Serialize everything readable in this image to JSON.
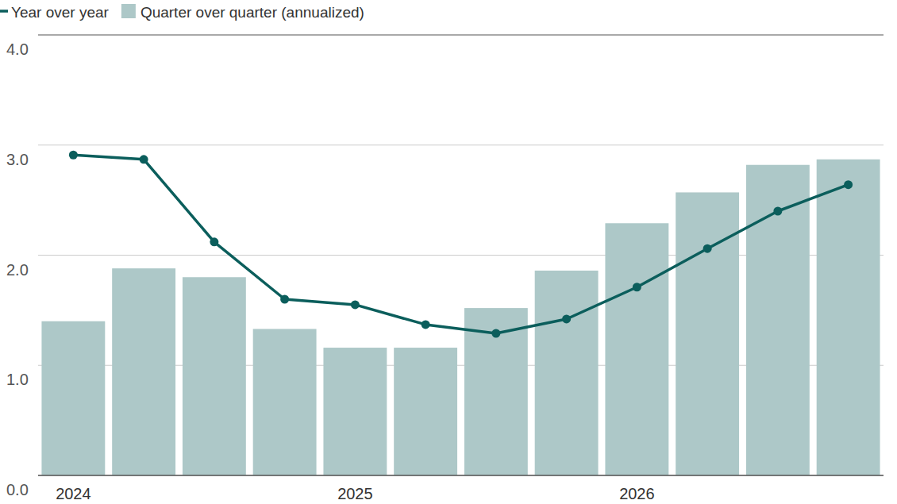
{
  "chart_data": {
    "type": "bar",
    "categories": [
      "2024",
      null,
      null,
      null,
      "2025",
      null,
      null,
      null,
      "2026",
      null,
      null,
      null
    ],
    "series": [
      {
        "name": "Year over year",
        "type": "line",
        "marker": "circle",
        "color": "#0b5e5c",
        "values": [
          2.91,
          2.87,
          2.12,
          1.6,
          1.55,
          1.37,
          1.29,
          1.42,
          1.71,
          2.06,
          2.4,
          2.64
        ]
      },
      {
        "name": "Quarter over quarter (annualized)",
        "type": "bar",
        "color": "#adc8c8",
        "values": [
          1.4,
          1.88,
          1.8,
          1.33,
          1.16,
          1.16,
          1.52,
          1.86,
          2.29,
          2.57,
          2.82,
          2.87
        ]
      }
    ],
    "ylim": [
      0,
      4
    ],
    "yticks": [
      {
        "value": 0,
        "label": "0.0"
      },
      {
        "value": 1,
        "label": "1.0"
      },
      {
        "value": 2,
        "label": "2.0"
      },
      {
        "value": 3,
        "label": "3.0"
      },
      {
        "value": 4,
        "label": "4.0"
      }
    ],
    "grid": true,
    "legend": "top"
  }
}
